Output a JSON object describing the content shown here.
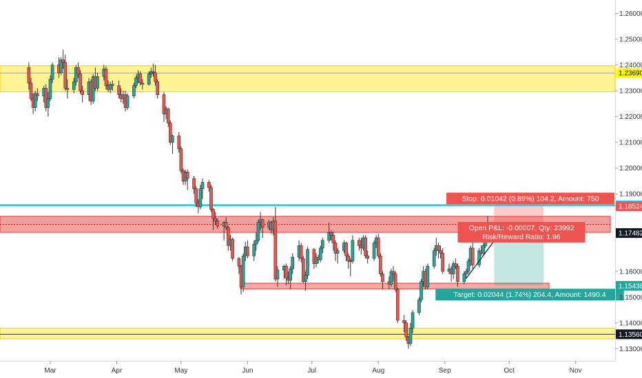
{
  "chart_data": {
    "type": "candlestick",
    "y_axis": {
      "ticks": [
        "1.26000",
        "1.25000",
        "1.24000",
        "1.23000",
        "1.22000",
        "1.21000",
        "1.20000",
        "1.19000",
        "1.16000",
        "1.15000",
        "1.14000",
        "1.13000"
      ],
      "tick_values": [
        1.26,
        1.25,
        1.24,
        1.23,
        1.22,
        1.21,
        1.2,
        1.19,
        1.16,
        1.15,
        1.14,
        1.13
      ],
      "range": [
        1.1253,
        1.2652
      ]
    },
    "x_axis": {
      "ticks": [
        "Mar",
        "Apr",
        "May",
        "Jun",
        "Jul",
        "Aug",
        "Sep",
        "Oct",
        "Nov"
      ],
      "tick_dates": [
        "2018-03-01",
        "2018-04-01",
        "2018-05-01",
        "2018-06-01",
        "2018-07-01",
        "2018-08-01",
        "2018-09-01",
        "2018-10-01",
        "2018-11-01"
      ]
    },
    "price_tags": [
      {
        "value": "1.23690",
        "level": 1.2369,
        "bg": "#ffff00",
        "fg": "#000000"
      },
      {
        "value": "1.18562",
        "level": 1.18562,
        "bg": "#00e5ff",
        "fg": "#000000"
      },
      {
        "value": "1.18524",
        "level": 1.18524,
        "bg": "#ef5350",
        "fg": "#ffffff"
      },
      {
        "value": "1.17489",
        "level": 1.17489,
        "bg": "#78909c",
        "fg": "#ffffff"
      },
      {
        "value": "1.17482",
        "level": 1.17482,
        "bg": "#131722",
        "fg": "#ffffff"
      },
      {
        "value": "1.15438",
        "level": 1.15438,
        "bg": "#26a69a",
        "fg": "#ffffff"
      },
      {
        "value": "1.13560",
        "level": 1.1356,
        "bg": "#131722",
        "fg": "#ffffff"
      }
    ],
    "zones": [
      {
        "kind": "yellow",
        "from": 1.2296,
        "to": 1.2397
      },
      {
        "kind": "red",
        "from": 1.1751,
        "to": 1.1813
      },
      {
        "kind": "red-thin",
        "from": 1.1532,
        "to": 1.1554
      },
      {
        "kind": "yellow",
        "from": 1.1338,
        "to": 1.138
      }
    ],
    "horizontal_lines": [
      {
        "level": 1.2369,
        "color": "#9e9e9e"
      },
      {
        "level": 1.18562,
        "color": "#00e5ff"
      },
      {
        "level": 1.1356,
        "color": "#333333"
      }
    ],
    "position": {
      "entry": 1.1749,
      "stop": 1.18532,
      "target": 1.15446,
      "stop_label": "Stop: 0.01042 (0.89%) 104.2, Amount: 750",
      "target_label": "Target: 0.02044 (1.74%) 204.4, Amount: 1490.4",
      "pnl_label": "Open P&L: -0.00007, Qty: 23992",
      "rr_label": "Risk/Reward Ratio: 1.96"
    },
    "trendline": {
      "from": [
        "2018-09-11",
        1.1573
      ],
      "to": [
        "2018-09-24",
        1.1718
      ]
    },
    "colors": {
      "up": "#26a69a",
      "down": "#ef5350",
      "wick": "#333333"
    },
    "candles": [
      [
        "2018-02-19",
        1.239,
        1.241,
        1.2305,
        1.233
      ],
      [
        "2018-02-20",
        1.233,
        1.235,
        1.226,
        1.227
      ],
      [
        "2018-02-21",
        1.227,
        1.229,
        1.221,
        1.2235
      ],
      [
        "2018-02-22",
        1.2235,
        1.23,
        1.222,
        1.229
      ],
      [
        "2018-02-23",
        1.229,
        1.231,
        1.226,
        1.228
      ],
      [
        "2018-02-26",
        1.228,
        1.232,
        1.2255,
        1.231
      ],
      [
        "2018-02-27",
        1.231,
        1.2325,
        1.222,
        1.2235
      ],
      [
        "2018-02-28",
        1.2235,
        1.2295,
        1.22,
        1.227
      ],
      [
        "2018-03-01",
        1.227,
        1.236,
        1.226,
        1.2345
      ],
      [
        "2018-03-02",
        1.2345,
        1.241,
        1.233,
        1.24
      ],
      [
        "2018-03-05",
        1.24,
        1.243,
        1.235,
        1.237
      ],
      [
        "2018-03-06",
        1.237,
        1.243,
        1.236,
        1.242
      ],
      [
        "2018-03-07",
        1.242,
        1.246,
        1.2385,
        1.241
      ],
      [
        "2018-03-08",
        1.241,
        1.244,
        1.23,
        1.231
      ],
      [
        "2018-03-09",
        1.231,
        1.2345,
        1.227,
        1.2305
      ],
      [
        "2018-03-12",
        1.2305,
        1.235,
        1.229,
        1.2335
      ],
      [
        "2018-03-13",
        1.2335,
        1.24,
        1.232,
        1.239
      ],
      [
        "2018-03-14",
        1.239,
        1.241,
        1.235,
        1.2365
      ],
      [
        "2018-03-15",
        1.2365,
        1.238,
        1.229,
        1.23
      ],
      [
        "2018-03-16",
        1.23,
        1.232,
        1.2255,
        1.2285
      ],
      [
        "2018-03-19",
        1.2285,
        1.235,
        1.226,
        1.2335
      ],
      [
        "2018-03-20",
        1.2335,
        1.2345,
        1.2245,
        1.226
      ],
      [
        "2018-03-21",
        1.226,
        1.2365,
        1.225,
        1.2355
      ],
      [
        "2018-03-22",
        1.2355,
        1.239,
        1.23,
        1.231
      ],
      [
        "2018-03-23",
        1.231,
        1.237,
        1.23,
        1.2355
      ],
      [
        "2018-03-26",
        1.2355,
        1.24,
        1.234,
        1.2385
      ],
      [
        "2018-03-27",
        1.2385,
        1.2395,
        1.2305,
        1.232
      ],
      [
        "2018-03-28",
        1.232,
        1.234,
        1.2295,
        1.2305
      ],
      [
        "2018-03-29",
        1.2305,
        1.2335,
        1.229,
        1.2325
      ],
      [
        "2018-03-30",
        1.2325,
        1.234,
        1.23,
        1.232
      ],
      [
        "2018-04-02",
        1.232,
        1.234,
        1.227,
        1.2285
      ],
      [
        "2018-04-03",
        1.2285,
        1.231,
        1.2255,
        1.227
      ],
      [
        "2018-04-04",
        1.227,
        1.23,
        1.225,
        1.2285
      ],
      [
        "2018-04-05",
        1.2285,
        1.23,
        1.222,
        1.2235
      ],
      [
        "2018-04-06",
        1.2235,
        1.229,
        1.2225,
        1.228
      ],
      [
        "2018-04-09",
        1.228,
        1.233,
        1.227,
        1.232
      ],
      [
        "2018-04-10",
        1.232,
        1.236,
        1.231,
        1.235
      ],
      [
        "2018-04-11",
        1.235,
        1.238,
        1.233,
        1.2365
      ],
      [
        "2018-04-12",
        1.2365,
        1.2375,
        1.232,
        1.233
      ],
      [
        "2018-04-13",
        1.233,
        1.2345,
        1.2305,
        1.2325
      ],
      [
        "2018-04-16",
        1.2325,
        1.2375,
        1.232,
        1.2365
      ],
      [
        "2018-04-17",
        1.2365,
        1.239,
        1.235,
        1.2375
      ],
      [
        "2018-04-18",
        1.2375,
        1.2405,
        1.2355,
        1.237
      ],
      [
        "2018-04-19",
        1.237,
        1.24,
        1.232,
        1.2335
      ],
      [
        "2018-04-20",
        1.2335,
        1.2345,
        1.227,
        1.2285
      ],
      [
        "2018-04-23",
        1.2285,
        1.2295,
        1.218,
        1.221
      ],
      [
        "2018-04-24",
        1.221,
        1.224,
        1.219,
        1.223
      ],
      [
        "2018-04-25",
        1.223,
        1.2235,
        1.216,
        1.2175
      ],
      [
        "2018-04-26",
        1.2175,
        1.2185,
        1.209,
        1.21
      ],
      [
        "2018-04-27",
        1.21,
        1.213,
        1.2055,
        1.2125
      ],
      [
        "2018-04-30",
        1.2125,
        1.214,
        1.206,
        1.2075
      ],
      [
        "2018-05-01",
        1.2075,
        1.2085,
        1.198,
        1.199
      ],
      [
        "2018-05-02",
        1.199,
        1.2,
        1.1935,
        1.195
      ],
      [
        "2018-05-03",
        1.195,
        1.1995,
        1.1935,
        1.1985
      ],
      [
        "2018-05-04",
        1.1985,
        1.1995,
        1.1915,
        1.196
      ],
      [
        "2018-05-07",
        1.196,
        1.197,
        1.19,
        1.192
      ],
      [
        "2018-05-08",
        1.192,
        1.193,
        1.185,
        1.1865
      ],
      [
        "2018-05-09",
        1.1865,
        1.188,
        1.1825,
        1.185
      ],
      [
        "2018-05-10",
        1.185,
        1.1935,
        1.184,
        1.192
      ],
      [
        "2018-05-11",
        1.192,
        1.196,
        1.188,
        1.1945
      ],
      [
        "2018-05-14",
        1.1945,
        1.1955,
        1.191,
        1.1925
      ],
      [
        "2018-05-15",
        1.1925,
        1.1935,
        1.183,
        1.184
      ],
      [
        "2018-05-16",
        1.184,
        1.1845,
        1.176,
        1.1805
      ],
      [
        "2018-05-17",
        1.1805,
        1.183,
        1.178,
        1.1795
      ],
      [
        "2018-05-18",
        1.1795,
        1.1805,
        1.1765,
        1.1775
      ],
      [
        "2018-05-21",
        1.1775,
        1.1795,
        1.172,
        1.179
      ],
      [
        "2018-05-22",
        1.179,
        1.181,
        1.176,
        1.177
      ],
      [
        "2018-05-23",
        1.177,
        1.1775,
        1.168,
        1.17
      ],
      [
        "2018-05-24",
        1.17,
        1.174,
        1.168,
        1.1725
      ],
      [
        "2018-05-25",
        1.1725,
        1.173,
        1.164,
        1.165
      ],
      [
        "2018-05-28",
        1.165,
        1.1655,
        1.159,
        1.162
      ],
      [
        "2018-05-29",
        1.162,
        1.1625,
        1.151,
        1.154
      ],
      [
        "2018-05-30",
        1.154,
        1.167,
        1.152,
        1.166
      ],
      [
        "2018-05-31",
        1.166,
        1.1715,
        1.164,
        1.1695
      ],
      [
        "2018-06-01",
        1.1695,
        1.172,
        1.165,
        1.166
      ],
      [
        "2018-06-04",
        1.166,
        1.172,
        1.164,
        1.1705
      ],
      [
        "2018-06-05",
        1.1705,
        1.175,
        1.168,
        1.172
      ],
      [
        "2018-06-06",
        1.172,
        1.18,
        1.171,
        1.179
      ],
      [
        "2018-06-07",
        1.179,
        1.183,
        1.176,
        1.18
      ],
      [
        "2018-06-08",
        1.18,
        1.1805,
        1.173,
        1.177
      ],
      [
        "2018-06-11",
        1.177,
        1.18,
        1.176,
        1.179
      ],
      [
        "2018-06-12",
        1.179,
        1.1795,
        1.1745,
        1.176
      ],
      [
        "2018-06-13",
        1.176,
        1.181,
        1.174,
        1.1795
      ],
      [
        "2018-06-14",
        1.1795,
        1.185,
        1.156,
        1.157
      ],
      [
        "2018-06-15",
        1.157,
        1.162,
        1.154,
        1.1605
      ],
      [
        "2018-06-18",
        1.1605,
        1.1625,
        1.157,
        1.162
      ],
      [
        "2018-06-19",
        1.162,
        1.163,
        1.1545,
        1.1575
      ],
      [
        "2018-06-20",
        1.1575,
        1.16,
        1.155,
        1.1565
      ],
      [
        "2018-06-21",
        1.1565,
        1.162,
        1.153,
        1.161
      ],
      [
        "2018-06-22",
        1.161,
        1.167,
        1.159,
        1.1655
      ],
      [
        "2018-06-25",
        1.1655,
        1.172,
        1.164,
        1.17
      ],
      [
        "2018-06-26",
        1.17,
        1.171,
        1.1635,
        1.165
      ],
      [
        "2018-06-27",
        1.165,
        1.166,
        1.1555,
        1.156
      ],
      [
        "2018-06-28",
        1.156,
        1.16,
        1.1525,
        1.1585
      ],
      [
        "2018-06-29",
        1.1585,
        1.1695,
        1.157,
        1.1685
      ],
      [
        "2018-07-02",
        1.1685,
        1.169,
        1.161,
        1.163
      ],
      [
        "2018-07-03",
        1.163,
        1.167,
        1.1615,
        1.1655
      ],
      [
        "2018-07-04",
        1.1655,
        1.1665,
        1.163,
        1.1645
      ],
      [
        "2018-07-05",
        1.1645,
        1.17,
        1.1635,
        1.169
      ],
      [
        "2018-07-06",
        1.169,
        1.173,
        1.167,
        1.172
      ],
      [
        "2018-07-09",
        1.172,
        1.179,
        1.171,
        1.175
      ],
      [
        "2018-07-10",
        1.175,
        1.176,
        1.172,
        1.174
      ],
      [
        "2018-07-11",
        1.174,
        1.1755,
        1.168,
        1.171
      ],
      [
        "2018-07-12",
        1.171,
        1.172,
        1.164,
        1.167
      ],
      [
        "2018-07-13",
        1.167,
        1.169,
        1.163,
        1.168
      ],
      [
        "2018-07-16",
        1.168,
        1.172,
        1.167,
        1.171
      ],
      [
        "2018-07-17",
        1.171,
        1.1715,
        1.164,
        1.166
      ],
      [
        "2018-07-18",
        1.166,
        1.167,
        1.161,
        1.164
      ],
      [
        "2018-07-19",
        1.164,
        1.165,
        1.158,
        1.164
      ],
      [
        "2018-07-20",
        1.164,
        1.174,
        1.163,
        1.172
      ],
      [
        "2018-07-23",
        1.172,
        1.173,
        1.168,
        1.17
      ],
      [
        "2018-07-24",
        1.17,
        1.173,
        1.1665,
        1.169
      ],
      [
        "2018-07-25",
        1.169,
        1.174,
        1.168,
        1.173
      ],
      [
        "2018-07-26",
        1.173,
        1.174,
        1.165,
        1.166
      ],
      [
        "2018-07-27",
        1.166,
        1.168,
        1.163,
        1.165
      ],
      [
        "2018-07-30",
        1.165,
        1.172,
        1.164,
        1.171
      ],
      [
        "2018-07-31",
        1.171,
        1.174,
        1.169,
        1.173
      ],
      [
        "2018-08-01",
        1.173,
        1.1745,
        1.165,
        1.166
      ],
      [
        "2018-08-02",
        1.166,
        1.167,
        1.158,
        1.159
      ],
      [
        "2018-08-03",
        1.159,
        1.16,
        1.153,
        1.156
      ],
      [
        "2018-08-06",
        1.156,
        1.158,
        1.153,
        1.155
      ],
      [
        "2018-08-07",
        1.155,
        1.161,
        1.154,
        1.16
      ],
      [
        "2018-08-08",
        1.16,
        1.162,
        1.156,
        1.159
      ],
      [
        "2018-08-09",
        1.159,
        1.16,
        1.152,
        1.153
      ],
      [
        "2018-08-10",
        1.153,
        1.1535,
        1.14,
        1.141
      ],
      [
        "2018-08-13",
        1.141,
        1.143,
        1.1365,
        1.14
      ],
      [
        "2018-08-14",
        1.14,
        1.141,
        1.133,
        1.1345
      ],
      [
        "2018-08-15",
        1.1345,
        1.135,
        1.13,
        1.132
      ],
      [
        "2018-08-16",
        1.132,
        1.14,
        1.131,
        1.138
      ],
      [
        "2018-08-17",
        1.138,
        1.145,
        1.136,
        1.144
      ],
      [
        "2018-08-20",
        1.144,
        1.15,
        1.143,
        1.149
      ],
      [
        "2018-08-21",
        1.149,
        1.157,
        1.148,
        1.156
      ],
      [
        "2018-08-22",
        1.156,
        1.162,
        1.154,
        1.16
      ],
      [
        "2018-08-23",
        1.16,
        1.161,
        1.153,
        1.154
      ],
      [
        "2018-08-24",
        1.154,
        1.163,
        1.153,
        1.162
      ],
      [
        "2018-08-27",
        1.162,
        1.169,
        1.161,
        1.168
      ],
      [
        "2018-08-28",
        1.168,
        1.173,
        1.166,
        1.17
      ],
      [
        "2018-08-29",
        1.17,
        1.171,
        1.165,
        1.168
      ],
      [
        "2018-08-30",
        1.168,
        1.17,
        1.165,
        1.167
      ],
      [
        "2018-08-31",
        1.167,
        1.169,
        1.159,
        1.16
      ],
      [
        "2018-09-03",
        1.16,
        1.163,
        1.159,
        1.161
      ],
      [
        "2018-09-04",
        1.161,
        1.162,
        1.156,
        1.159
      ],
      [
        "2018-09-05",
        1.159,
        1.164,
        1.157,
        1.163
      ],
      [
        "2018-09-06",
        1.163,
        1.165,
        1.161,
        1.162
      ],
      [
        "2018-09-07",
        1.162,
        1.163,
        1.154,
        1.156
      ],
      [
        "2018-09-10",
        1.156,
        1.16,
        1.155,
        1.159
      ],
      [
        "2018-09-11",
        1.159,
        1.161,
        1.157,
        1.16
      ],
      [
        "2018-09-12",
        1.16,
        1.165,
        1.159,
        1.164
      ],
      [
        "2018-09-13",
        1.164,
        1.17,
        1.162,
        1.169
      ],
      [
        "2018-09-14",
        1.169,
        1.172,
        1.161,
        1.1625
      ],
      [
        "2018-09-17",
        1.1625,
        1.169,
        1.1615,
        1.168
      ],
      [
        "2018-09-18",
        1.168,
        1.17,
        1.166,
        1.167
      ],
      [
        "2018-09-19",
        1.167,
        1.171,
        1.166,
        1.17
      ],
      [
        "2018-09-20",
        1.17,
        1.179,
        1.169,
        1.1775
      ],
      [
        "2018-09-21",
        1.1775,
        1.1815,
        1.1735,
        1.1748
      ]
    ]
  }
}
